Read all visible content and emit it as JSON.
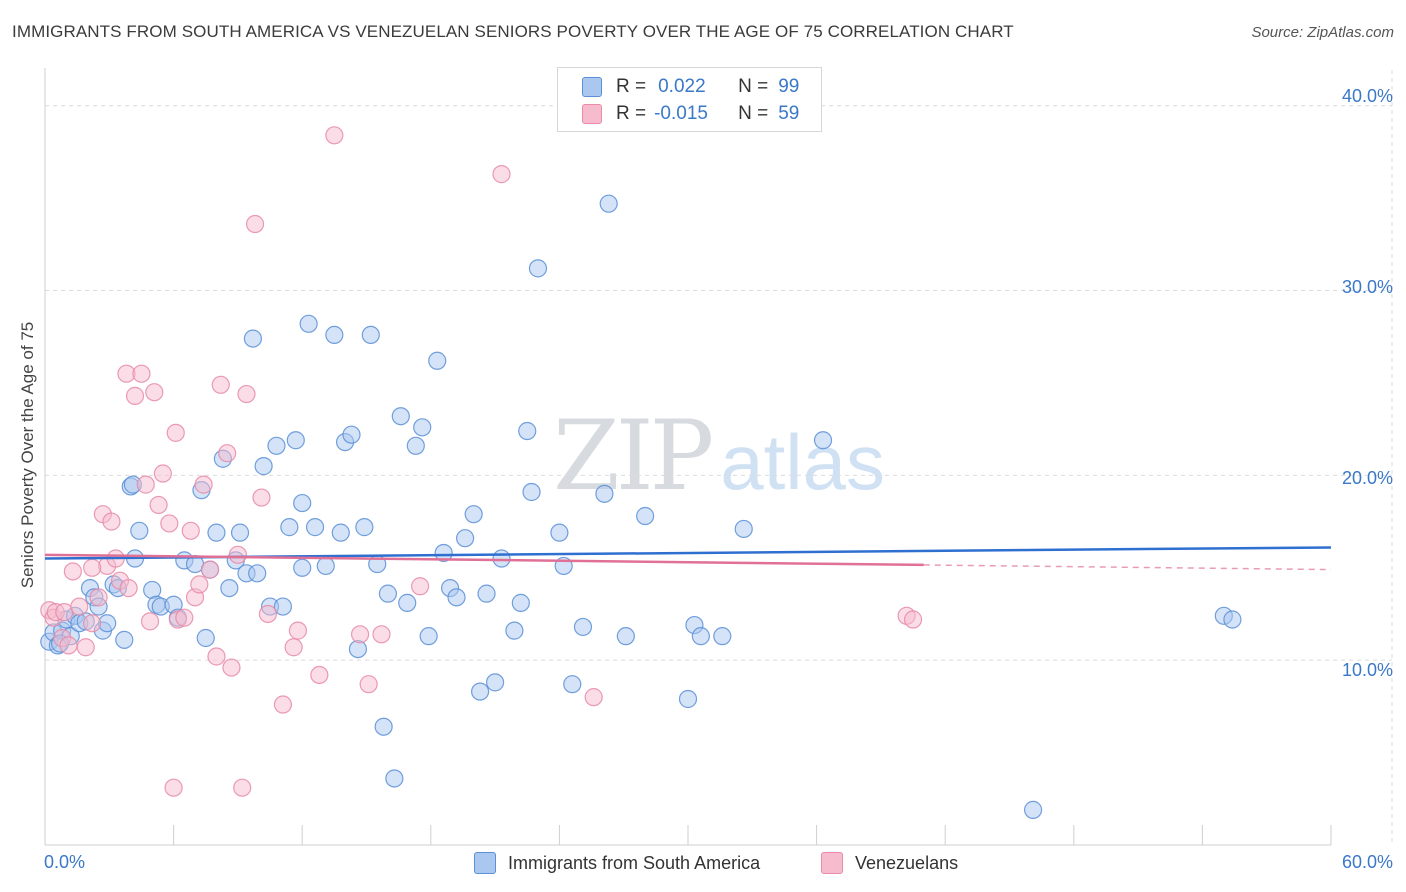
{
  "header": {
    "title": "IMMIGRANTS FROM SOUTH AMERICA VS VENEZUELAN SENIORS POVERTY OVER THE AGE OF 75 CORRELATION CHART",
    "source": "Source: ZipAtlas.com"
  },
  "watermark": {
    "zip": "ZIP",
    "atlas": "atlas"
  },
  "legend": {
    "rows": [
      {
        "r_label": "R =",
        "r_value": "0.022",
        "n_label": "N =",
        "n_value": "99"
      },
      {
        "r_label": "R =",
        "r_value": "-0.015",
        "n_label": "N =",
        "n_value": "59"
      }
    ]
  },
  "colors": {
    "blue_fill": "#aac8ef",
    "blue_stroke": "#5b8fd6",
    "blue_line": "#2f6fd0",
    "pink_fill": "#f6bccd",
    "pink_stroke": "#e88aa8",
    "pink_line": "#e07096",
    "grid": "#dcdcdc",
    "tick_text": "#3a78c8"
  },
  "chart_data": {
    "type": "scatter",
    "title": "IMMIGRANTS FROM SOUTH AMERICA VS VENEZUELAN SENIORS POVERTY OVER THE AGE OF 75 CORRELATION CHART",
    "xlabel": "",
    "ylabel": "Seniors Poverty Over the Age of 75",
    "xlim": [
      0,
      60
    ],
    "ylim": [
      0,
      41.5
    ],
    "x_tick_labels": [
      "0.0%",
      "60.0%"
    ],
    "y_ticks": [
      10,
      20,
      30,
      40
    ],
    "y_tick_labels": [
      "10.0%",
      "20.0%",
      "30.0%",
      "40.0%"
    ],
    "grid": true,
    "legend_placement": "bottom",
    "series": [
      {
        "name": "Immigrants from South America",
        "r": 0.022,
        "n": 99,
        "trend": {
          "x": [
            0,
            60
          ],
          "y": [
            15.5,
            16.1
          ]
        },
        "points": [
          [
            0.2,
            11.0
          ],
          [
            0.4,
            11.5
          ],
          [
            0.6,
            10.8
          ],
          [
            0.8,
            11.6
          ],
          [
            1.0,
            12.2
          ],
          [
            1.2,
            11.3
          ],
          [
            1.4,
            12.4
          ],
          [
            1.6,
            12.0
          ],
          [
            1.9,
            12.1
          ],
          [
            2.1,
            13.9
          ],
          [
            2.3,
            13.4
          ],
          [
            2.5,
            12.9
          ],
          [
            2.7,
            11.6
          ],
          [
            2.9,
            12.0
          ],
          [
            3.2,
            14.1
          ],
          [
            3.4,
            13.9
          ],
          [
            3.7,
            11.1
          ],
          [
            4.0,
            19.4
          ],
          [
            4.2,
            15.5
          ],
          [
            4.4,
            17.0
          ],
          [
            5.0,
            13.8
          ],
          [
            5.2,
            13.0
          ],
          [
            5.4,
            12.9
          ],
          [
            6.0,
            13.0
          ],
          [
            6.2,
            12.3
          ],
          [
            6.5,
            15.4
          ],
          [
            7.0,
            15.2
          ],
          [
            7.3,
            19.2
          ],
          [
            7.5,
            11.2
          ],
          [
            7.7,
            14.9
          ],
          [
            8.0,
            16.9
          ],
          [
            8.3,
            20.9
          ],
          [
            8.6,
            13.9
          ],
          [
            8.9,
            15.4
          ],
          [
            9.1,
            16.9
          ],
          [
            9.4,
            14.7
          ],
          [
            9.7,
            27.4
          ],
          [
            9.9,
            14.7
          ],
          [
            10.2,
            20.5
          ],
          [
            10.5,
            12.9
          ],
          [
            10.8,
            21.6
          ],
          [
            11.1,
            12.9
          ],
          [
            11.4,
            17.2
          ],
          [
            11.7,
            21.9
          ],
          [
            12.0,
            18.5
          ],
          [
            12.3,
            28.2
          ],
          [
            12.6,
            17.2
          ],
          [
            13.1,
            15.1
          ],
          [
            13.5,
            27.6
          ],
          [
            13.8,
            16.9
          ],
          [
            14.0,
            21.8
          ],
          [
            14.3,
            22.2
          ],
          [
            14.6,
            10.6
          ],
          [
            14.9,
            17.2
          ],
          [
            15.2,
            27.6
          ],
          [
            15.5,
            15.2
          ],
          [
            15.8,
            6.4
          ],
          [
            16.0,
            13.6
          ],
          [
            16.3,
            3.6
          ],
          [
            16.6,
            23.2
          ],
          [
            16.9,
            13.1
          ],
          [
            17.3,
            21.6
          ],
          [
            17.6,
            22.6
          ],
          [
            17.9,
            11.3
          ],
          [
            18.3,
            26.2
          ],
          [
            18.6,
            15.8
          ],
          [
            18.9,
            13.9
          ],
          [
            19.2,
            13.4
          ],
          [
            19.6,
            16.6
          ],
          [
            20.0,
            17.9
          ],
          [
            20.3,
            8.3
          ],
          [
            20.6,
            13.6
          ],
          [
            21.0,
            8.8
          ],
          [
            21.3,
            15.5
          ],
          [
            21.9,
            11.6
          ],
          [
            22.2,
            13.1
          ],
          [
            22.5,
            22.4
          ],
          [
            22.7,
            19.1
          ],
          [
            23.0,
            31.2
          ],
          [
            24.0,
            16.9
          ],
          [
            24.2,
            15.1
          ],
          [
            24.6,
            8.7
          ],
          [
            25.1,
            11.8
          ],
          [
            26.1,
            19.0
          ],
          [
            26.3,
            34.7
          ],
          [
            27.1,
            11.3
          ],
          [
            28.0,
            17.8
          ],
          [
            30.0,
            7.9
          ],
          [
            30.3,
            11.9
          ],
          [
            30.6,
            11.3
          ],
          [
            31.6,
            11.3
          ],
          [
            32.6,
            17.1
          ],
          [
            36.3,
            21.9
          ],
          [
            46.1,
            1.9
          ],
          [
            55.0,
            12.4
          ],
          [
            55.4,
            12.2
          ],
          [
            12.0,
            15.0
          ],
          [
            4.1,
            19.5
          ],
          [
            0.7,
            10.9
          ]
        ]
      },
      {
        "name": "Venezuelans",
        "r": -0.015,
        "n": 59,
        "trend": {
          "x": [
            0,
            60
          ],
          "y": [
            15.7,
            14.9
          ]
        },
        "points": [
          [
            0.2,
            12.7
          ],
          [
            0.4,
            12.3
          ],
          [
            0.5,
            12.6
          ],
          [
            0.8,
            11.2
          ],
          [
            0.9,
            12.6
          ],
          [
            1.1,
            10.8
          ],
          [
            1.3,
            14.8
          ],
          [
            1.6,
            12.9
          ],
          [
            1.9,
            10.7
          ],
          [
            2.2,
            12.0
          ],
          [
            2.5,
            13.4
          ],
          [
            2.7,
            17.9
          ],
          [
            2.9,
            15.1
          ],
          [
            3.1,
            17.5
          ],
          [
            3.3,
            15.5
          ],
          [
            3.5,
            14.3
          ],
          [
            3.8,
            25.5
          ],
          [
            3.9,
            13.9
          ],
          [
            4.2,
            24.3
          ],
          [
            4.5,
            25.5
          ],
          [
            4.7,
            19.5
          ],
          [
            4.9,
            12.1
          ],
          [
            5.1,
            24.5
          ],
          [
            5.3,
            18.4
          ],
          [
            5.5,
            20.1
          ],
          [
            5.8,
            17.4
          ],
          [
            6.1,
            22.3
          ],
          [
            6.2,
            12.2
          ],
          [
            6.5,
            12.3
          ],
          [
            6.8,
            17.0
          ],
          [
            7.0,
            13.4
          ],
          [
            7.2,
            14.1
          ],
          [
            7.4,
            19.5
          ],
          [
            7.7,
            14.9
          ],
          [
            8.0,
            10.2
          ],
          [
            8.2,
            24.9
          ],
          [
            8.5,
            21.2
          ],
          [
            8.7,
            9.6
          ],
          [
            9.0,
            15.7
          ],
          [
            9.2,
            3.1
          ],
          [
            9.4,
            24.4
          ],
          [
            9.8,
            33.6
          ],
          [
            10.1,
            18.8
          ],
          [
            10.4,
            12.5
          ],
          [
            11.1,
            7.6
          ],
          [
            11.6,
            10.7
          ],
          [
            11.8,
            11.6
          ],
          [
            12.8,
            9.2
          ],
          [
            13.5,
            38.4
          ],
          [
            14.7,
            11.4
          ],
          [
            15.1,
            8.7
          ],
          [
            15.7,
            11.4
          ],
          [
            17.5,
            14.0
          ],
          [
            21.3,
            36.3
          ],
          [
            25.6,
            8.0
          ],
          [
            40.2,
            12.4
          ],
          [
            40.5,
            12.2
          ],
          [
            6.0,
            3.1
          ],
          [
            2.2,
            15.0
          ]
        ]
      }
    ]
  },
  "bottom_legend": {
    "items": [
      {
        "label": "Immigrants from South America"
      },
      {
        "label": "Venezuelans"
      }
    ]
  }
}
